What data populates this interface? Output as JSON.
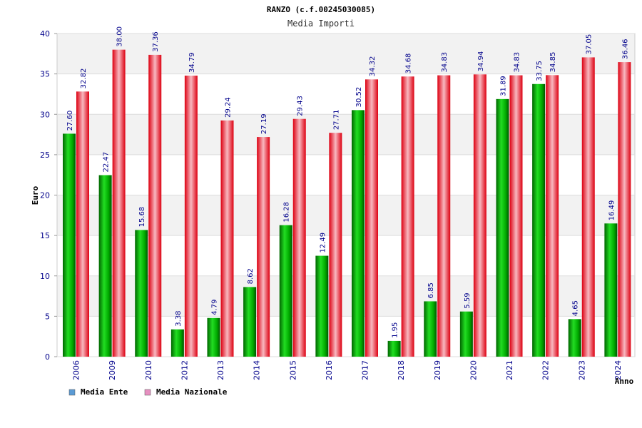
{
  "chart_data": {
    "type": "bar",
    "title": "RANZO (c.f.00245030085)",
    "subtitle": "Media Importi",
    "xlabel": "Anno",
    "ylabel": "Euro",
    "ylim": [
      0,
      40
    ],
    "yticks": [
      0,
      5,
      10,
      15,
      20,
      25,
      30,
      35,
      40
    ],
    "grid": true,
    "legend_position": "bottom-left",
    "categories": [
      "2006",
      "2009",
      "2010",
      "2012",
      "2013",
      "2014",
      "2015",
      "2016",
      "2017",
      "2018",
      "2019",
      "2020",
      "2021",
      "2022",
      "2023",
      "2024"
    ],
    "series": [
      {
        "name": "Media Ente",
        "color": "#00bb00",
        "legend_color": "#5b9bd5",
        "values": [
          27.6,
          22.47,
          15.68,
          3.38,
          4.79,
          8.62,
          16.28,
          12.49,
          30.52,
          1.95,
          6.85,
          5.59,
          31.89,
          33.75,
          4.65,
          16.49
        ],
        "labels": [
          "27.60",
          "22.47",
          "15.68",
          "3.38",
          "4.79",
          "8.62",
          "16.28",
          "12.49",
          "30.52",
          "1.95",
          "6.85",
          "5.59",
          "31.89",
          "33.75",
          "4.65",
          "16.49"
        ]
      },
      {
        "name": "Media Nazionale",
        "color": "#ee1122",
        "legend_color": "#e68fc0",
        "values": [
          32.82,
          38.0,
          37.36,
          34.79,
          29.24,
          27.19,
          29.43,
          27.71,
          34.32,
          34.68,
          34.83,
          34.94,
          34.83,
          34.85,
          37.05,
          36.46
        ],
        "labels": [
          "32.82",
          "38.00",
          "37.36",
          "34.79",
          "29.24",
          "27.19",
          "29.43",
          "27.71",
          "34.32",
          "34.68",
          "34.83",
          "34.94",
          "34.83",
          "34.85",
          "37.05",
          "36.46"
        ]
      }
    ]
  }
}
